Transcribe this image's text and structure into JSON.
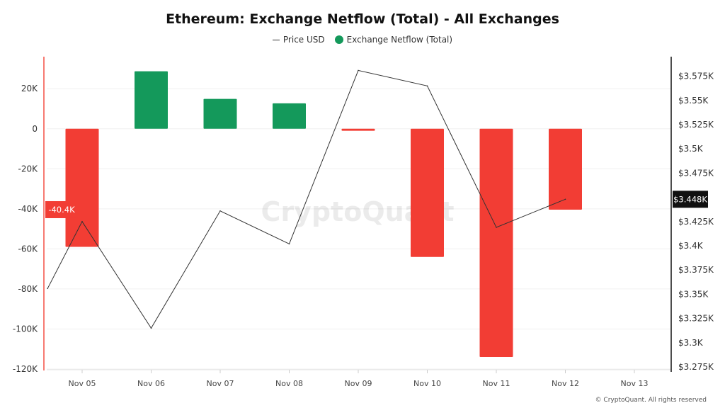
{
  "chart_data": {
    "type": "bar+line",
    "title": "Ethereum: Exchange Netflow (Total) - All Exchanges",
    "legend": [
      "Price USD",
      "Exchange Netflow (Total)"
    ],
    "legend_position": "top",
    "categories": [
      "Nov 05",
      "Nov 06",
      "Nov 07",
      "Nov 08",
      "Nov 09",
      "Nov 10",
      "Nov 11",
      "Nov 12",
      "Nov 13"
    ],
    "series": [
      {
        "name": "Exchange Netflow (Total)",
        "axis": "left",
        "type": "bar",
        "values": [
          -59000,
          28700,
          14900,
          12700,
          -1000,
          -64000,
          -114000,
          -40400,
          null
        ]
      },
      {
        "name": "Price USD",
        "axis": "right",
        "type": "line",
        "x": [
          -0.5,
          0,
          1,
          2,
          3,
          4,
          5,
          6,
          7
        ],
        "values": [
          3356,
          3425,
          3315,
          3436,
          3402,
          3581,
          3565,
          3419,
          3448
        ]
      }
    ],
    "left_axis": {
      "ticks": [
        20000,
        0,
        -20000,
        -40000,
        -60000,
        -80000,
        -100000,
        -120000
      ],
      "tick_labels": [
        "20K",
        "0",
        "-20K",
        "-40K",
        "-60K",
        "-80K",
        "-100K",
        "-120K"
      ],
      "range": [
        -120000,
        36000
      ]
    },
    "right_axis": {
      "ticks": [
        3575,
        3550,
        3525,
        3500,
        3475,
        3450,
        3425,
        3400,
        3375,
        3350,
        3325,
        3300,
        3275
      ],
      "tick_labels": [
        "$3.575K",
        "$3.55K",
        "$3.525K",
        "$3.5K",
        "$3.475K",
        "",
        "$3.425K",
        "$3.4K",
        "$3.375K",
        "$3.35K",
        "$3.325K",
        "$3.3K",
        "$3.275K"
      ],
      "range": [
        3275,
        3588
      ]
    },
    "current_left_label": "-40.4K",
    "current_left_value": -40400,
    "current_right_label": "$3.448K",
    "current_right_value": 3448,
    "grid": true,
    "watermark": "CryptoQuant"
  },
  "colors": {
    "positive": "#14995b",
    "negative": "#f23d34",
    "line": "#333333",
    "left_axis": "#f77a72"
  },
  "footer": "© CryptoQuant. All rights reserved"
}
